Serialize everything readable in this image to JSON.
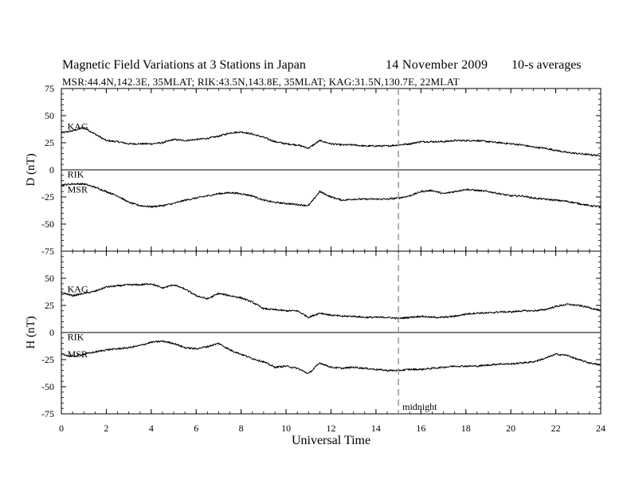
{
  "header": {
    "title": "Magnetic Field Variations at 3 Stations in Japan",
    "date": "14 November 2009",
    "averaging": "10-s averages",
    "stations_line": "MSR:44.4N,142.3E, 35MLAT;  RIK:43.5N,143.8E, 35MLAT;  KAG:31.5N,130.7E, 22MLAT"
  },
  "chart_data": {
    "type": "line",
    "xlabel": "Universal Time",
    "xlim": [
      0,
      24
    ],
    "x_ticks": [
      0,
      2,
      4,
      6,
      8,
      10,
      12,
      14,
      16,
      18,
      20,
      22,
      24
    ],
    "annotation": {
      "x": 15,
      "label": "midnight",
      "style": "dashed"
    },
    "panels": [
      {
        "ylabel": "D (nT)",
        "ylim": [
          -75,
          75
        ],
        "y_ticks": [
          75,
          50,
          25,
          0,
          -25,
          -50,
          -75
        ],
        "zero_line": true,
        "station_labels": [
          {
            "text": "KAG",
            "x": 0.2,
            "y": 40
          },
          {
            "text": "RIK",
            "x": 0.2,
            "y": -4
          },
          {
            "text": "MSR",
            "x": 0.2,
            "y": -18
          }
        ],
        "series": [
          {
            "name": "KAG",
            "x": [
              0,
              0.5,
              1,
              1.5,
              2,
              2.5,
              3,
              3.5,
              4,
              4.5,
              5,
              5.5,
              6,
              6.5,
              7,
              7.5,
              8,
              8.5,
              9,
              9.5,
              10,
              10.5,
              11,
              11.5,
              12,
              12.5,
              13,
              13.5,
              14,
              14.5,
              15,
              15.5,
              16,
              16.5,
              17,
              17.5,
              18,
              18.5,
              19,
              19.5,
              20,
              20.5,
              21,
              21.5,
              22,
              22.5,
              23,
              23.5,
              24
            ],
            "values": [
              34,
              36,
              39,
              33,
              27,
              26,
              24,
              24,
              24,
              25,
              28,
              27,
              28,
              29,
              31,
              34,
              35,
              33,
              30,
              26,
              24,
              23,
              20,
              27,
              24,
              23,
              23,
              22,
              22,
              22,
              23,
              24,
              26,
              26,
              26,
              27,
              27,
              27,
              26,
              25,
              24,
              23,
              21,
              20,
              18,
              16,
              15,
              14,
              13
            ]
          },
          {
            "name": "RIK / MSR",
            "x": [
              0,
              0.5,
              1,
              1.5,
              2,
              2.5,
              3,
              3.5,
              4,
              4.5,
              5,
              5.5,
              6,
              6.5,
              7,
              7.5,
              8,
              8.5,
              9,
              9.5,
              10,
              10.5,
              11,
              11.5,
              12,
              12.5,
              13,
              13.5,
              14,
              14.5,
              15,
              15.5,
              16,
              16.5,
              17,
              17.5,
              18,
              18.5,
              19,
              19.5,
              20,
              20.5,
              21,
              21.5,
              22,
              22.5,
              23,
              23.5,
              24
            ],
            "values": [
              -14,
              -13,
              -13,
              -16,
              -20,
              -24,
              -30,
              -33,
              -34,
              -33,
              -31,
              -28,
              -26,
              -24,
              -22,
              -21,
              -22,
              -24,
              -28,
              -30,
              -31,
              -32,
              -33,
              -20,
              -25,
              -28,
              -27,
              -27,
              -27,
              -27,
              -26,
              -24,
              -20,
              -19,
              -22,
              -20,
              -18,
              -19,
              -20,
              -22,
              -24,
              -24,
              -26,
              -27,
              -28,
              -29,
              -31,
              -33,
              -34
            ]
          }
        ]
      },
      {
        "ylabel": "H (nT)",
        "ylim": [
          -75,
          75
        ],
        "y_ticks": [
          75,
          50,
          25,
          0,
          -25,
          -50,
          -75
        ],
        "zero_line": true,
        "station_labels": [
          {
            "text": "KAG",
            "x": 0.2,
            "y": 40
          },
          {
            "text": "RIK",
            "x": 0.2,
            "y": -4
          },
          {
            "text": "MSR",
            "x": 0.2,
            "y": -20
          }
        ],
        "series": [
          {
            "name": "KAG",
            "x": [
              0,
              0.5,
              1,
              1.5,
              2,
              2.5,
              3,
              3.5,
              4,
              4.5,
              5,
              5.5,
              6,
              6.5,
              7,
              7.5,
              8,
              8.5,
              9,
              9.5,
              10,
              10.5,
              11,
              11.5,
              12,
              12.5,
              13,
              13.5,
              14,
              14.5,
              15,
              15.5,
              16,
              16.5,
              17,
              17.5,
              18,
              18.5,
              19,
              19.5,
              20,
              20.5,
              21,
              21.5,
              22,
              22.5,
              23,
              23.5,
              24
            ],
            "values": [
              37,
              34,
              36,
              38,
              42,
              43,
              44,
              44,
              45,
              41,
              44,
              40,
              34,
              31,
              36,
              34,
              32,
              28,
              22,
              21,
              20,
              20,
              14,
              18,
              16,
              15,
              15,
              14,
              14,
              14,
              13,
              14,
              15,
              14,
              14,
              15,
              17,
              18,
              18,
              19,
              19,
              20,
              20,
              21,
              24,
              26,
              25,
              23,
              20
            ]
          },
          {
            "name": "RIK / MSR",
            "x": [
              0,
              0.5,
              1,
              1.5,
              2,
              2.5,
              3,
              3.5,
              4,
              4.5,
              5,
              5.5,
              6,
              6.5,
              7,
              7.5,
              8,
              8.5,
              9,
              9.5,
              10,
              10.5,
              11,
              11.5,
              12,
              12.5,
              13,
              13.5,
              14,
              14.5,
              15,
              15.5,
              16,
              16.5,
              17,
              17.5,
              18,
              18.5,
              19,
              19.5,
              20,
              20.5,
              21,
              21.5,
              22,
              22.5,
              23,
              23.5,
              24
            ],
            "values": [
              -20,
              -22,
              -20,
              -18,
              -16,
              -15,
              -14,
              -12,
              -9,
              -8,
              -10,
              -14,
              -15,
              -13,
              -10,
              -16,
              -20,
              -24,
              -27,
              -32,
              -31,
              -33,
              -38,
              -28,
              -32,
              -33,
              -32,
              -33,
              -34,
              -35,
              -35,
              -34,
              -34,
              -33,
              -32,
              -31,
              -31,
              -31,
              -30,
              -29,
              -29,
              -28,
              -27,
              -24,
              -20,
              -21,
              -25,
              -28,
              -30
            ]
          }
        ]
      }
    ]
  }
}
